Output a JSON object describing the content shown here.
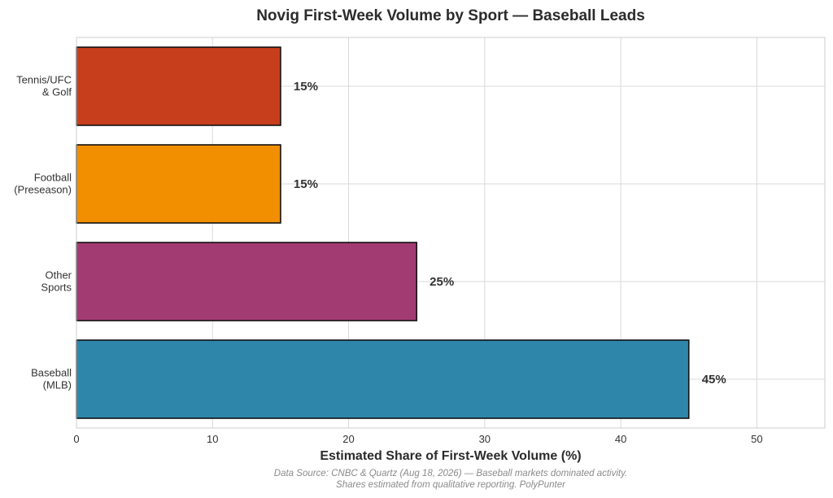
{
  "chart_data": {
    "type": "bar",
    "orientation": "horizontal",
    "title": "Novig First-Week Volume by Sport — Baseball Leads",
    "xlabel": "Estimated Share of First-Week Volume (%)",
    "ylabel": "",
    "xlim": [
      0,
      55
    ],
    "xticks": [
      0,
      10,
      20,
      30,
      40,
      50
    ],
    "grid": true,
    "categories": [
      [
        "Baseball",
        "(MLB)"
      ],
      [
        "Other",
        "Sports"
      ],
      [
        "Football",
        "(Preseason)"
      ],
      [
        "Tennis/UFC",
        "& Golf"
      ]
    ],
    "values": [
      45,
      25,
      15,
      15
    ],
    "value_labels": [
      "45%",
      "25%",
      "15%",
      "15%"
    ],
    "colors": [
      "#2E86AB",
      "#A23B72",
      "#F18F01",
      "#C73E1D"
    ]
  },
  "source_lines": [
    "Data Source: CNBC & Quartz (Aug 18, 2026) — Baseball markets dominated activity.",
    "Shares estimated from qualitative reporting. PolyPunter"
  ]
}
